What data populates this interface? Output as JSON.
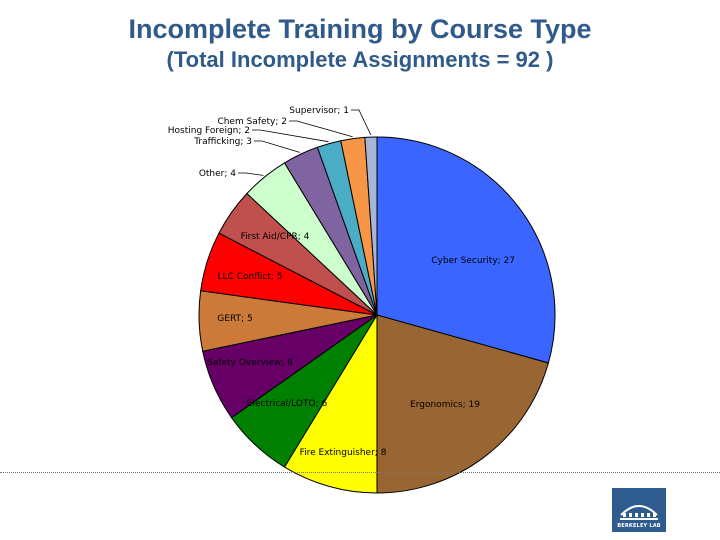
{
  "chart_data": {
    "type": "pie",
    "title": "Incomplete Training by Course Type",
    "subtitle": "(Total Incomplete Assignments = 92 )",
    "slices": [
      {
        "label": "Cyber Security",
        "value": 27,
        "color": "#3a66ff"
      },
      {
        "label": "Ergonomics",
        "value": 19,
        "color": "#996633"
      },
      {
        "label": "Fire Extinguisher",
        "value": 8,
        "color": "#ffff00"
      },
      {
        "label": "Electrical/LOTO",
        "value": 6,
        "color": "#008000"
      },
      {
        "label": "Safety Overview",
        "value": 6,
        "color": "#660066"
      },
      {
        "label": "GERT",
        "value": 5,
        "color": "#cc7a3a"
      },
      {
        "label": "LLC Conflict",
        "value": 5,
        "color": "#ff0000"
      },
      {
        "label": "First Aid/CPR",
        "value": 4,
        "color": "#c0504d"
      },
      {
        "label": "Other",
        "value": 4,
        "color": "#ccffcc"
      },
      {
        "label": "Trafficking",
        "value": 3,
        "color": "#8064a2"
      },
      {
        "label": "Hosting Foreign",
        "value": 2,
        "color": "#4bacc6"
      },
      {
        "label": "Chem Safety",
        "value": 2,
        "color": "#f79646"
      },
      {
        "label": "Supervisor",
        "value": 1,
        "color": "#a6b6d6"
      }
    ],
    "label_separator": "; "
  },
  "logo": {
    "text": "BERKELEY LAB"
  }
}
